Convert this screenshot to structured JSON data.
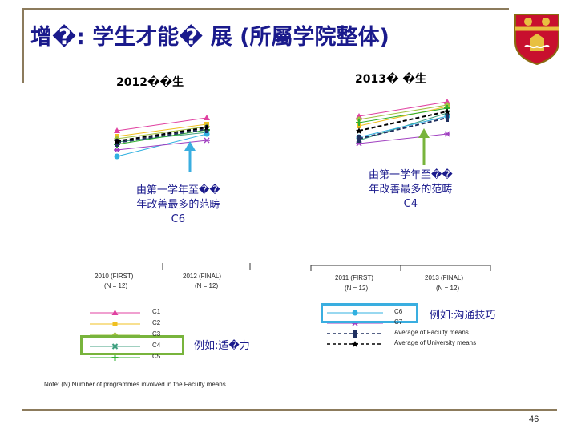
{
  "slide": {
    "title": "增�: 学生才能� 展 (所屬学院整体)",
    "page_number": "46"
  },
  "left_chart": {
    "heading": "2012��生",
    "note_line1": "由第一学年至��",
    "note_line2": "年改善最多的范畴",
    "note_line3": "C6",
    "axis_start": "2010 (FIRST)",
    "axis_start_n": "(N = 12)",
    "axis_end": "2012 (FINAL)",
    "axis_end_n": "(N = 12)"
  },
  "right_chart": {
    "heading": "2013� �生",
    "note_line1": "由第一学年至��",
    "note_line2": "年改善最多的范畴",
    "note_line3": "C4",
    "axis_start": "2011 (FIRST)",
    "axis_start_n": "(N = 12)",
    "axis_end": "2013 (FINAL)",
    "axis_end_n": "(N = 12)"
  },
  "legend_left": {
    "items": [
      {
        "label": "C1",
        "color": "#e040a0",
        "marker": "triangle"
      },
      {
        "label": "C2",
        "color": "#f0c020",
        "marker": "square"
      },
      {
        "label": "C3",
        "color": "#a0c040",
        "marker": "diamond"
      },
      {
        "label": "C4",
        "color": "#40a080",
        "marker": "x"
      },
      {
        "label": "C5",
        "color": "#30b030",
        "marker": "plus"
      }
    ]
  },
  "legend_right": {
    "items": [
      {
        "label": "C6",
        "color": "#30b0e0",
        "marker": "circle"
      },
      {
        "label": "C7",
        "color": "#a040c0",
        "marker": "asterisk"
      },
      {
        "label": "Average of Faculty means",
        "color": "#203060",
        "marker": "bar"
      },
      {
        "label": "Average of University means",
        "color": "#000000",
        "marker": "star"
      }
    ]
  },
  "callouts": {
    "left": "例如:适�力",
    "right": "例如:沟通技巧"
  },
  "footnote": "Note: (N)   Number of programmes involved in the Faculty means",
  "chart_data": [
    {
      "type": "line",
      "title": "2012��生",
      "x": [
        "2010 (FIRST)",
        "2012 (FINAL)"
      ],
      "series": [
        {
          "name": "C1",
          "values": [
            0.62,
            0.78
          ]
        },
        {
          "name": "C2",
          "values": [
            0.55,
            0.7
          ]
        },
        {
          "name": "C3",
          "values": [
            0.52,
            0.67
          ]
        },
        {
          "name": "C4",
          "values": [
            0.48,
            0.6
          ]
        },
        {
          "name": "C5",
          "values": [
            0.45,
            0.63
          ]
        },
        {
          "name": "C6",
          "values": [
            0.3,
            0.58
          ]
        },
        {
          "name": "C7",
          "values": [
            0.38,
            0.5
          ]
        },
        {
          "name": "Average of Faculty means",
          "values": [
            0.47,
            0.64
          ]
        },
        {
          "name": "Average of University means",
          "values": [
            0.49,
            0.66
          ]
        }
      ]
    },
    {
      "type": "line",
      "title": "2013� �生",
      "x": [
        "2011 (FIRST)",
        "2013 (FINAL)"
      ],
      "series": [
        {
          "name": "C1",
          "values": [
            0.7,
            0.88
          ]
        },
        {
          "name": "C2",
          "values": [
            0.58,
            0.82
          ]
        },
        {
          "name": "C3",
          "values": [
            0.66,
            0.84
          ]
        },
        {
          "name": "C4",
          "values": [
            0.4,
            0.74
          ]
        },
        {
          "name": "C5",
          "values": [
            0.62,
            0.8
          ]
        },
        {
          "name": "C6",
          "values": [
            0.44,
            0.7
          ]
        },
        {
          "name": "C7",
          "values": [
            0.36,
            0.48
          ]
        },
        {
          "name": "Average of Faculty means",
          "values": [
            0.42,
            0.68
          ]
        },
        {
          "name": "Average of University means",
          "values": [
            0.52,
            0.76
          ]
        }
      ]
    }
  ]
}
